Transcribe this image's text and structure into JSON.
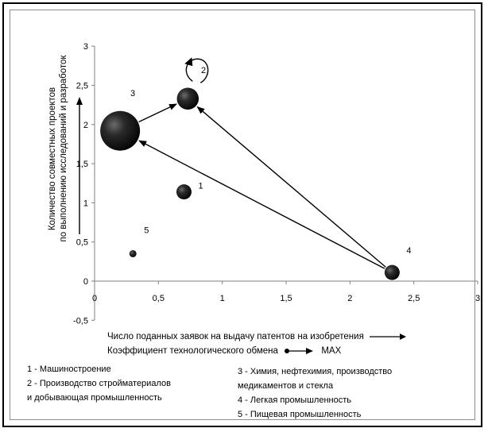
{
  "chart_data": {
    "type": "bubble",
    "xlabel": "Число поданных заявок на выдачу патентов на изобретения",
    "xlabel2": "Коэффициент технологического обмена",
    "xlabel2_suffix": "MAX",
    "ylabel_line1": "Количество совместных проектов",
    "ylabel_line2": "по выполнению исследований и разработок",
    "xlim": [
      0,
      3
    ],
    "ylim": [
      -0.5,
      3
    ],
    "x_ticks": [
      "0",
      "0,5",
      "1",
      "1,5",
      "2",
      "2,5",
      "3"
    ],
    "y_ticks": [
      "-0,5",
      "0",
      "0,5",
      "1",
      "1,5",
      "2",
      "2,5",
      "3"
    ],
    "grid": false,
    "points": [
      {
        "label": "1",
        "x": 0.7,
        "y": 1.14,
        "size": 0.38
      },
      {
        "label": "2",
        "x": 0.73,
        "y": 2.33,
        "size": 0.55
      },
      {
        "label": "3",
        "x": 0.2,
        "y": 1.92,
        "size": 1.0
      },
      {
        "label": "4",
        "x": 2.33,
        "y": 0.11,
        "size": 0.38
      },
      {
        "label": "5",
        "x": 0.3,
        "y": 0.35,
        "size": 0.18
      }
    ],
    "arrows": [
      {
        "from": "4",
        "to": "3"
      },
      {
        "from": "4",
        "to": "2"
      },
      {
        "from": "3",
        "to": "2"
      }
    ],
    "self_loop": "2"
  },
  "legend": {
    "left": [
      "1 - Машиностроение",
      "2 - Производство стройматериалов",
      "и добывающая промышленность"
    ],
    "right": [
      "3 - Химия, нефтехимия, производство",
      "медикаментов и стекла",
      "4 - Легкая промышленность",
      "5 - Пищевая промышленность"
    ]
  }
}
